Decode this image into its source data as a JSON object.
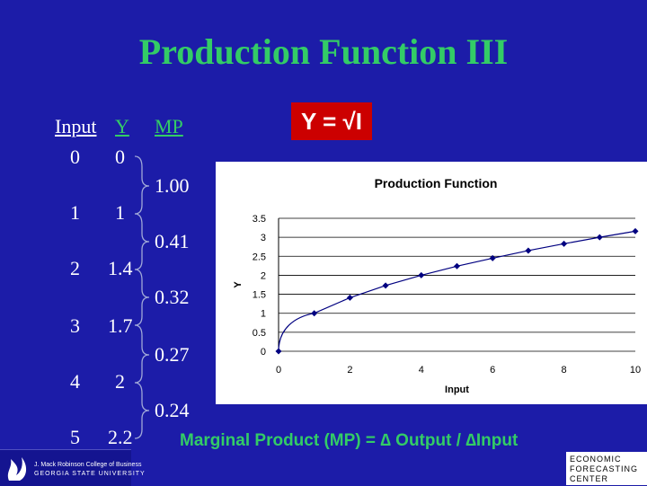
{
  "slide": {
    "title": "Production Function III",
    "formula": "Y = √I",
    "footer": "Marginal Product (MP) = ∆ Output / ∆Input"
  },
  "table": {
    "headers": {
      "input": "Input",
      "y": "Y",
      "mp": "MP"
    },
    "rows": [
      {
        "input": "0",
        "y": "0"
      },
      {
        "input": "1",
        "y": "1"
      },
      {
        "input": "2",
        "y": "1.4"
      },
      {
        "input": "3",
        "y": "1.7"
      },
      {
        "input": "4",
        "y": "2"
      },
      {
        "input": "5",
        "y": "2.2"
      }
    ],
    "mp": [
      "1.00",
      "0.41",
      "0.32",
      "0.27",
      "0.24"
    ]
  },
  "logos": {
    "left_line1": "J. Mack Robinson College of Business",
    "left_line2": "GEORGIA STATE UNIVERSITY",
    "right_lines": [
      "ECONOMIC",
      "FORECASTING",
      "CENTER"
    ]
  },
  "colors": {
    "background": "#1c1ca8",
    "accent_green": "#33cc66",
    "formula_box": "#cc0000",
    "series": "#000080"
  },
  "chart_data": {
    "type": "line",
    "title": "Production Function",
    "xlabel": "Input",
    "ylabel": "Y",
    "xlim": [
      0,
      10
    ],
    "ylim": [
      0,
      3.5
    ],
    "xticks": [
      "0",
      "2",
      "4",
      "6",
      "8",
      "10"
    ],
    "yticks": [
      "0",
      "0.5",
      "1",
      "1.5",
      "2",
      "2.5",
      "3",
      "3.5"
    ],
    "grid": "horizontal",
    "series": [
      {
        "x": [
          0,
          1,
          2,
          3,
          4,
          5,
          6,
          7,
          8,
          9,
          10
        ],
        "values": [
          0,
          1,
          1.41,
          1.73,
          2,
          2.24,
          2.45,
          2.65,
          2.83,
          3,
          3.16
        ]
      }
    ]
  }
}
